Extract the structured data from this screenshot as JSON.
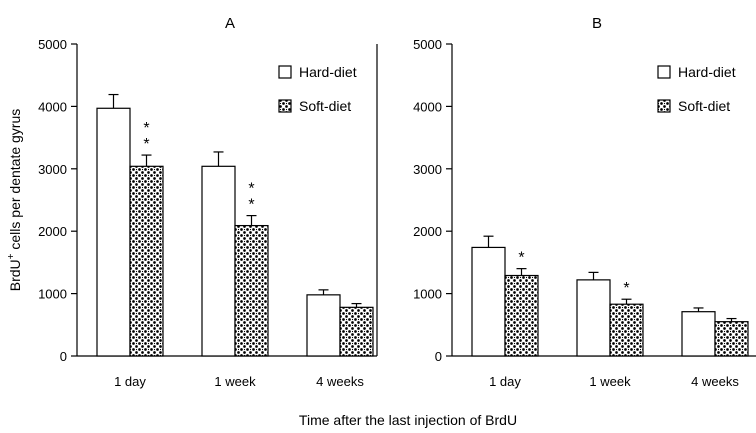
{
  "figure": {
    "shared_ylabel_main": "BrdU",
    "shared_ylabel_sup": "+",
    "shared_ylabel_rest": " cells per dentate gyrus",
    "shared_xlabel": "Time after the last injection of BrdU",
    "colors": {
      "hard": "#ffffff",
      "soft_pattern": "stippled-dots",
      "ink": "#000000"
    }
  },
  "chart_data": [
    {
      "type": "bar",
      "title": "A",
      "categories": [
        "1 day",
        "1 week",
        "4 weeks"
      ],
      "ylim": [
        0,
        5000
      ],
      "yticks": [
        "0",
        "1000",
        "2000",
        "3000",
        "4000",
        "5000"
      ],
      "ylabel": "BrdU+ cells per dentate gyrus",
      "xlabel": "Time after the last injection of BrdU",
      "legend_position": "top-right",
      "series": [
        {
          "name": "Hard-diet",
          "values": [
            3970,
            3040,
            980
          ],
          "errors": [
            220,
            230,
            80
          ]
        },
        {
          "name": "Soft-diet",
          "values": [
            3040,
            2090,
            780
          ],
          "errors": [
            180,
            160,
            60
          ]
        }
      ],
      "annotations": [
        {
          "series": 1,
          "category": 0,
          "text": "**"
        },
        {
          "series": 1,
          "category": 1,
          "text": "**"
        }
      ]
    },
    {
      "type": "bar",
      "title": "B",
      "categories": [
        "1 day",
        "1 week",
        "4 weeks"
      ],
      "ylim": [
        0,
        5000
      ],
      "yticks": [
        "0",
        "1000",
        "2000",
        "3000",
        "4000",
        "5000"
      ],
      "ylabel": "BrdU+ cells per dentate gyrus",
      "xlabel": "Time after the last injection of BrdU",
      "legend_position": "top-right",
      "series": [
        {
          "name": "Hard-diet",
          "values": [
            1740,
            1220,
            710
          ],
          "errors": [
            180,
            120,
            60
          ]
        },
        {
          "name": "Soft-diet",
          "values": [
            1290,
            830,
            550
          ],
          "errors": [
            110,
            80,
            50
          ]
        }
      ],
      "annotations": [
        {
          "series": 1,
          "category": 0,
          "text": "*"
        },
        {
          "series": 1,
          "category": 1,
          "text": "*"
        }
      ]
    }
  ]
}
